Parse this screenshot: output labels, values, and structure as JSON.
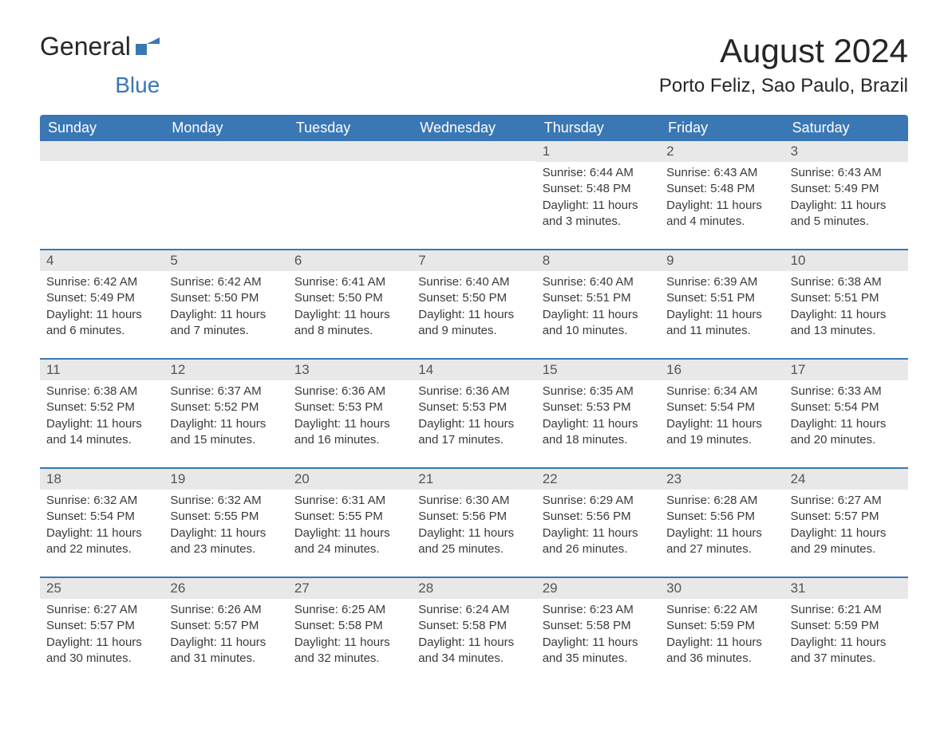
{
  "logo": {
    "part1": "General",
    "part2": "Blue"
  },
  "title": "August 2024",
  "location": "Porto Feliz, Sao Paulo, Brazil",
  "colors": {
    "header_bg": "#3a77b5",
    "header_text": "#ffffff",
    "band_bg": "#e8e8e8",
    "border": "#3a77b5",
    "text": "#333333",
    "logo_gray": "#262626",
    "logo_blue": "#3a77b5"
  },
  "typography": {
    "title_fontsize": 42,
    "location_fontsize": 24,
    "weekday_fontsize": 18,
    "daynum_fontsize": 17,
    "detail_fontsize": 15
  },
  "weekdays": [
    "Sunday",
    "Monday",
    "Tuesday",
    "Wednesday",
    "Thursday",
    "Friday",
    "Saturday"
  ],
  "weeks": [
    [
      {
        "empty": true
      },
      {
        "empty": true
      },
      {
        "empty": true
      },
      {
        "empty": true
      },
      {
        "day": "1",
        "sunrise": "Sunrise: 6:44 AM",
        "sunset": "Sunset: 5:48 PM",
        "daylight": "Daylight: 11 hours and 3 minutes."
      },
      {
        "day": "2",
        "sunrise": "Sunrise: 6:43 AM",
        "sunset": "Sunset: 5:48 PM",
        "daylight": "Daylight: 11 hours and 4 minutes."
      },
      {
        "day": "3",
        "sunrise": "Sunrise: 6:43 AM",
        "sunset": "Sunset: 5:49 PM",
        "daylight": "Daylight: 11 hours and 5 minutes."
      }
    ],
    [
      {
        "day": "4",
        "sunrise": "Sunrise: 6:42 AM",
        "sunset": "Sunset: 5:49 PM",
        "daylight": "Daylight: 11 hours and 6 minutes."
      },
      {
        "day": "5",
        "sunrise": "Sunrise: 6:42 AM",
        "sunset": "Sunset: 5:50 PM",
        "daylight": "Daylight: 11 hours and 7 minutes."
      },
      {
        "day": "6",
        "sunrise": "Sunrise: 6:41 AM",
        "sunset": "Sunset: 5:50 PM",
        "daylight": "Daylight: 11 hours and 8 minutes."
      },
      {
        "day": "7",
        "sunrise": "Sunrise: 6:40 AM",
        "sunset": "Sunset: 5:50 PM",
        "daylight": "Daylight: 11 hours and 9 minutes."
      },
      {
        "day": "8",
        "sunrise": "Sunrise: 6:40 AM",
        "sunset": "Sunset: 5:51 PM",
        "daylight": "Daylight: 11 hours and 10 minutes."
      },
      {
        "day": "9",
        "sunrise": "Sunrise: 6:39 AM",
        "sunset": "Sunset: 5:51 PM",
        "daylight": "Daylight: 11 hours and 11 minutes."
      },
      {
        "day": "10",
        "sunrise": "Sunrise: 6:38 AM",
        "sunset": "Sunset: 5:51 PM",
        "daylight": "Daylight: 11 hours and 13 minutes."
      }
    ],
    [
      {
        "day": "11",
        "sunrise": "Sunrise: 6:38 AM",
        "sunset": "Sunset: 5:52 PM",
        "daylight": "Daylight: 11 hours and 14 minutes."
      },
      {
        "day": "12",
        "sunrise": "Sunrise: 6:37 AM",
        "sunset": "Sunset: 5:52 PM",
        "daylight": "Daylight: 11 hours and 15 minutes."
      },
      {
        "day": "13",
        "sunrise": "Sunrise: 6:36 AM",
        "sunset": "Sunset: 5:53 PM",
        "daylight": "Daylight: 11 hours and 16 minutes."
      },
      {
        "day": "14",
        "sunrise": "Sunrise: 6:36 AM",
        "sunset": "Sunset: 5:53 PM",
        "daylight": "Daylight: 11 hours and 17 minutes."
      },
      {
        "day": "15",
        "sunrise": "Sunrise: 6:35 AM",
        "sunset": "Sunset: 5:53 PM",
        "daylight": "Daylight: 11 hours and 18 minutes."
      },
      {
        "day": "16",
        "sunrise": "Sunrise: 6:34 AM",
        "sunset": "Sunset: 5:54 PM",
        "daylight": "Daylight: 11 hours and 19 minutes."
      },
      {
        "day": "17",
        "sunrise": "Sunrise: 6:33 AM",
        "sunset": "Sunset: 5:54 PM",
        "daylight": "Daylight: 11 hours and 20 minutes."
      }
    ],
    [
      {
        "day": "18",
        "sunrise": "Sunrise: 6:32 AM",
        "sunset": "Sunset: 5:54 PM",
        "daylight": "Daylight: 11 hours and 22 minutes."
      },
      {
        "day": "19",
        "sunrise": "Sunrise: 6:32 AM",
        "sunset": "Sunset: 5:55 PM",
        "daylight": "Daylight: 11 hours and 23 minutes."
      },
      {
        "day": "20",
        "sunrise": "Sunrise: 6:31 AM",
        "sunset": "Sunset: 5:55 PM",
        "daylight": "Daylight: 11 hours and 24 minutes."
      },
      {
        "day": "21",
        "sunrise": "Sunrise: 6:30 AM",
        "sunset": "Sunset: 5:56 PM",
        "daylight": "Daylight: 11 hours and 25 minutes."
      },
      {
        "day": "22",
        "sunrise": "Sunrise: 6:29 AM",
        "sunset": "Sunset: 5:56 PM",
        "daylight": "Daylight: 11 hours and 26 minutes."
      },
      {
        "day": "23",
        "sunrise": "Sunrise: 6:28 AM",
        "sunset": "Sunset: 5:56 PM",
        "daylight": "Daylight: 11 hours and 27 minutes."
      },
      {
        "day": "24",
        "sunrise": "Sunrise: 6:27 AM",
        "sunset": "Sunset: 5:57 PM",
        "daylight": "Daylight: 11 hours and 29 minutes."
      }
    ],
    [
      {
        "day": "25",
        "sunrise": "Sunrise: 6:27 AM",
        "sunset": "Sunset: 5:57 PM",
        "daylight": "Daylight: 11 hours and 30 minutes."
      },
      {
        "day": "26",
        "sunrise": "Sunrise: 6:26 AM",
        "sunset": "Sunset: 5:57 PM",
        "daylight": "Daylight: 11 hours and 31 minutes."
      },
      {
        "day": "27",
        "sunrise": "Sunrise: 6:25 AM",
        "sunset": "Sunset: 5:58 PM",
        "daylight": "Daylight: 11 hours and 32 minutes."
      },
      {
        "day": "28",
        "sunrise": "Sunrise: 6:24 AM",
        "sunset": "Sunset: 5:58 PM",
        "daylight": "Daylight: 11 hours and 34 minutes."
      },
      {
        "day": "29",
        "sunrise": "Sunrise: 6:23 AM",
        "sunset": "Sunset: 5:58 PM",
        "daylight": "Daylight: 11 hours and 35 minutes."
      },
      {
        "day": "30",
        "sunrise": "Sunrise: 6:22 AM",
        "sunset": "Sunset: 5:59 PM",
        "daylight": "Daylight: 11 hours and 36 minutes."
      },
      {
        "day": "31",
        "sunrise": "Sunrise: 6:21 AM",
        "sunset": "Sunset: 5:59 PM",
        "daylight": "Daylight: 11 hours and 37 minutes."
      }
    ]
  ]
}
